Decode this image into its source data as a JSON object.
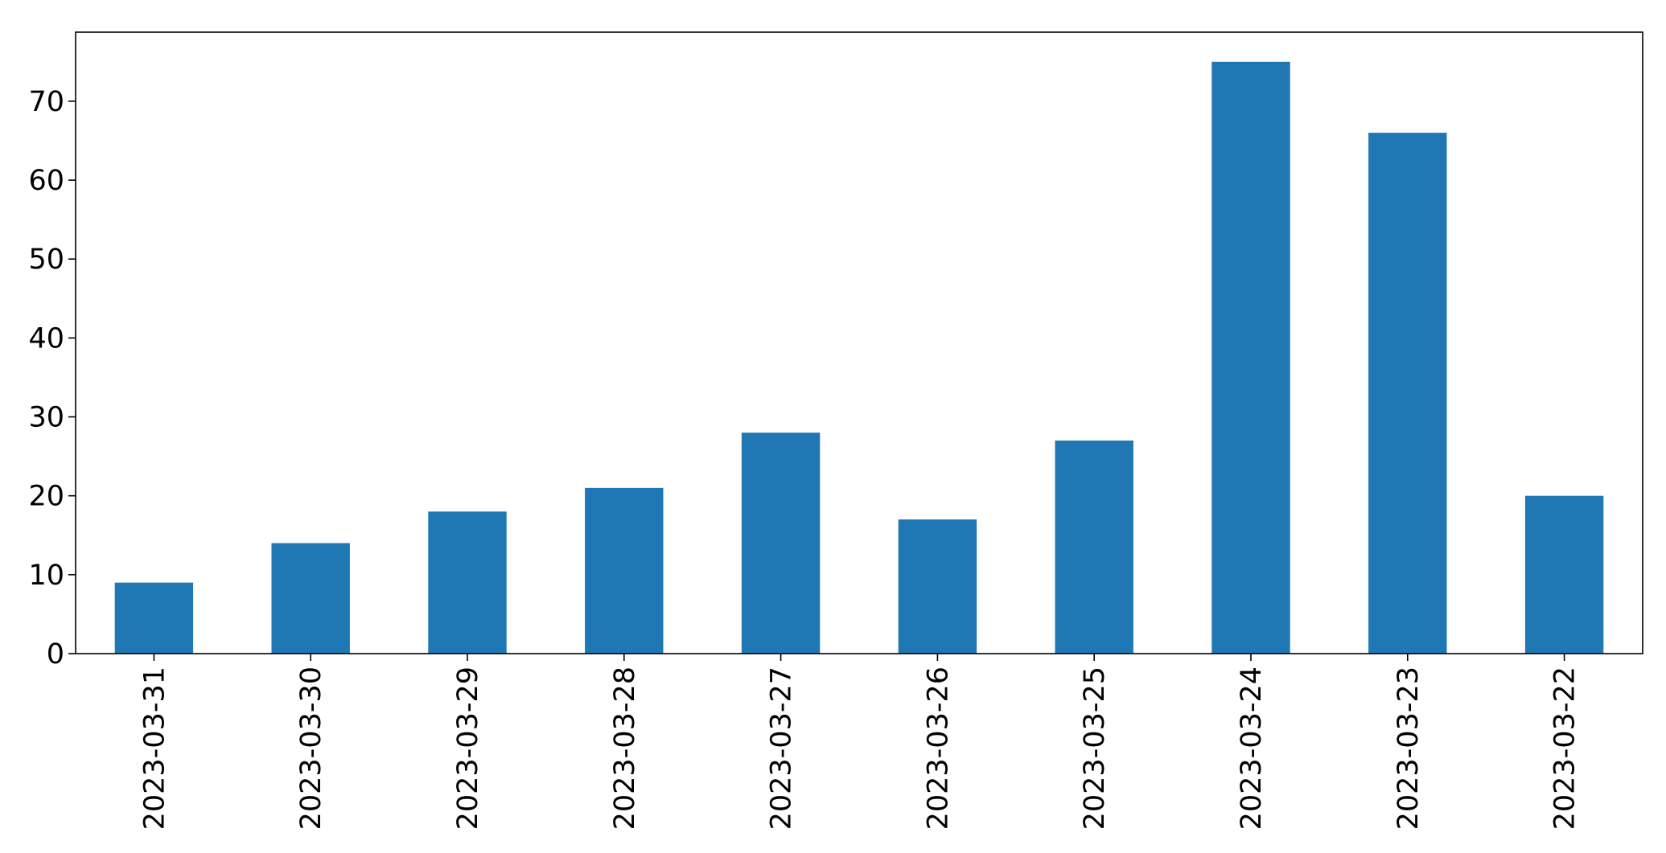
{
  "chart_data": {
    "type": "bar",
    "title": "",
    "xlabel": "",
    "ylabel": "",
    "categories": [
      "2023-03-31",
      "2023-03-30",
      "2023-03-29",
      "2023-03-28",
      "2023-03-27",
      "2023-03-26",
      "2023-03-25",
      "2023-03-24",
      "2023-03-23",
      "2023-03-22"
    ],
    "values": [
      9,
      14,
      18,
      21,
      28,
      17,
      27,
      75,
      66,
      20
    ],
    "ylim": [
      0,
      78.75
    ],
    "yticks": [
      0,
      10,
      20,
      30,
      40,
      50,
      60,
      70
    ],
    "grid": false,
    "legend": "none",
    "bar_color": "#1f77b4",
    "axis_color": "#000000"
  }
}
